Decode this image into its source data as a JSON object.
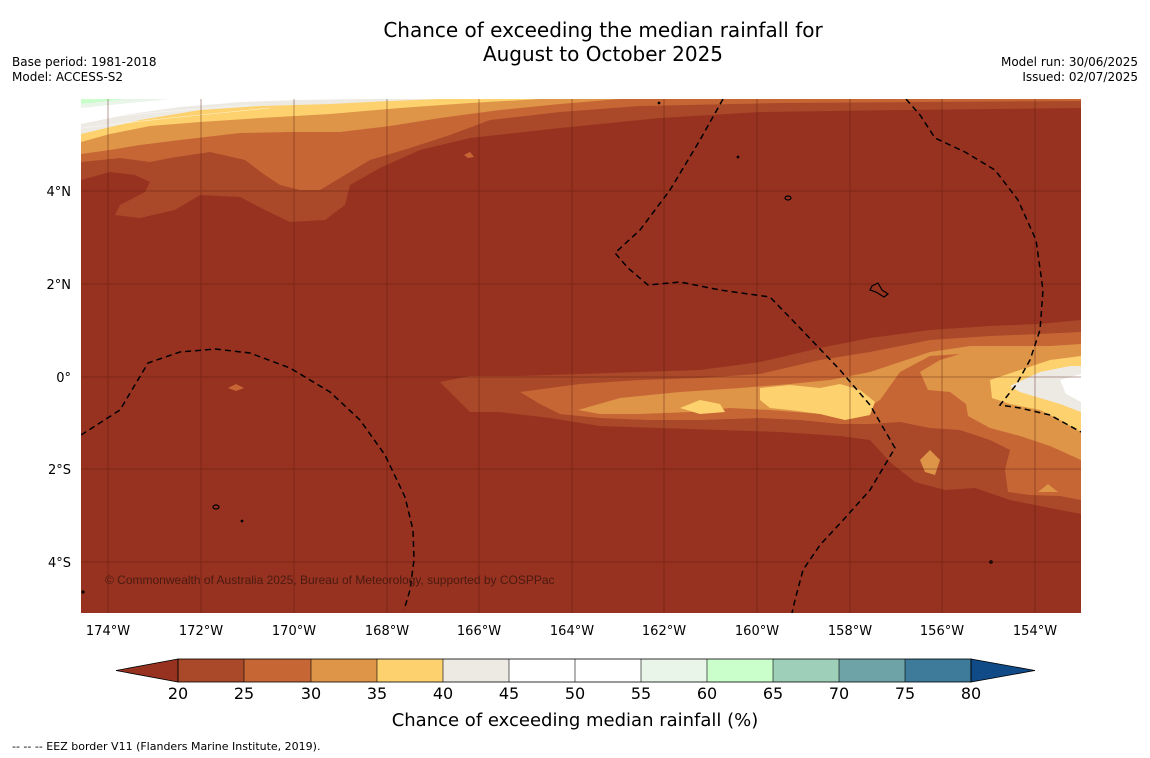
{
  "title": {
    "line1": "Chance of exceeding the median rainfall for",
    "line2": "August to October 2025"
  },
  "meta_left": {
    "base_period": "Base period: 1981-2018",
    "model": "Model: ACCESS-S2"
  },
  "meta_right": {
    "model_run": "Model run: 30/06/2025",
    "issued": "Issued: 02/07/2025"
  },
  "map": {
    "lat_labels": [
      "4°N",
      "2°N",
      "0°",
      "2°S",
      "4°S"
    ],
    "lon_labels": [
      "174°W",
      "172°W",
      "170°W",
      "168°W",
      "166°W",
      "164°W",
      "162°W",
      "160°W",
      "158°W",
      "156°W",
      "154°W"
    ],
    "copyright": "© Commonwealth of Australia 2025, Bureau of Meteorology, supported by COSPPac",
    "colors": {
      "below_20": "#973221",
      "c20_25": "#a94929",
      "c25_30": "#c76635",
      "c30_35": "#de9548",
      "c35_40": "#fdd26e",
      "c40_45": "#edeae4",
      "c45_55": "#ffffff",
      "c55_60": "#e9f5e9",
      "c60_65": "#caffcc",
      "c65_70": "#9ecfb8",
      "c70_75": "#6ea4a8",
      "c75_80": "#3e7a9a",
      "above_80": "#104a87"
    }
  },
  "colorbar": {
    "ticks": [
      "20",
      "25",
      "30",
      "35",
      "40",
      "45",
      "50",
      "55",
      "60",
      "65",
      "70",
      "75",
      "80"
    ],
    "title": "Chance of exceeding median rainfall (%)"
  },
  "footnote": "--  --  -- EEZ border V11 (Flanders Marine Institute, 2019)."
}
